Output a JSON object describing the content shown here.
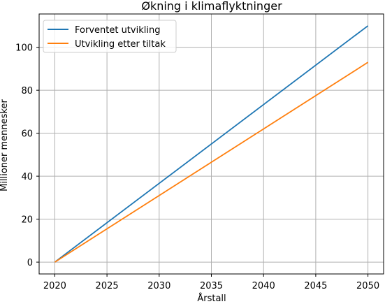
{
  "chart_data": {
    "type": "line",
    "title": "Økning i klimaflyktninger",
    "xlabel": "Årstall",
    "ylabel": "Millioner mennesker",
    "x": [
      2020,
      2050
    ],
    "series": [
      {
        "name": "Forventet utvikling",
        "color": "#1f77b4",
        "x": [
          2020,
          2050
        ],
        "values": [
          0,
          110
        ]
      },
      {
        "name": "Utvikling etter tiltak",
        "color": "#ff7f0e",
        "x": [
          2020,
          2050
        ],
        "values": [
          0,
          93
        ]
      }
    ],
    "xticks": [
      2020,
      2025,
      2030,
      2035,
      2040,
      2045,
      2050
    ],
    "yticks": [
      0,
      20,
      40,
      60,
      80,
      100
    ],
    "xlim": [
      2018.5,
      2051.5
    ],
    "ylim": [
      -5.5,
      115.5
    ],
    "grid": true,
    "legend_position": "top-left"
  }
}
